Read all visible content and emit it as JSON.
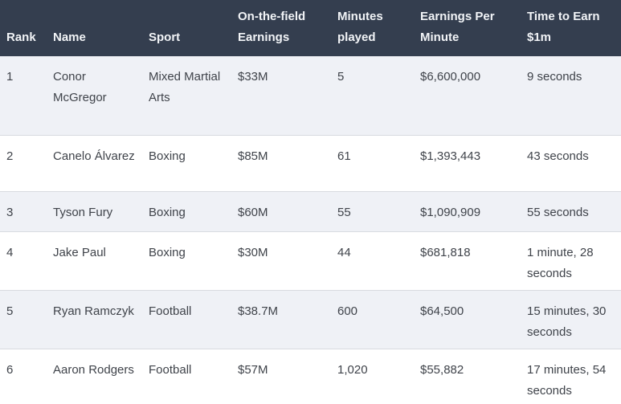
{
  "chart_data": {
    "type": "table",
    "columns": [
      "Rank",
      "Name",
      "Sport",
      "On-the-field Earnings",
      "Minutes played",
      "Earnings Per Minute",
      "Time to Earn $1m"
    ],
    "rows": [
      [
        "1",
        "Conor McGregor",
        "Mixed Martial Arts",
        "$33M",
        "5",
        "$6,600,000",
        "9 seconds"
      ],
      [
        "2",
        "Canelo Álvarez",
        "Boxing",
        "$85M",
        "61",
        "$1,393,443",
        "43 seconds"
      ],
      [
        "3",
        "Tyson Fury",
        "Boxing",
        "$60M",
        "55",
        "$1,090,909",
        "55 seconds"
      ],
      [
        "4",
        "Jake Paul",
        "Boxing",
        "$30M",
        "44",
        "$681,818",
        "1 minute, 28 seconds"
      ],
      [
        "5",
        "Ryan Ramczyk",
        "Football",
        "$38.7M",
        "600",
        "$64,500",
        "15 minutes, 30 seconds"
      ],
      [
        "6",
        "Aaron Rodgers",
        "Football",
        "$57M",
        "1,020",
        "$55,882",
        "17 minutes, 54 seconds"
      ]
    ]
  },
  "colors": {
    "header_bg": "#343E4F",
    "header_text": "#F2F4F7",
    "row_alt_bg": "#EFF1F6",
    "row_bg": "#FFFFFF",
    "body_text": "#3F434A",
    "row_border": "#D8DBE0"
  }
}
